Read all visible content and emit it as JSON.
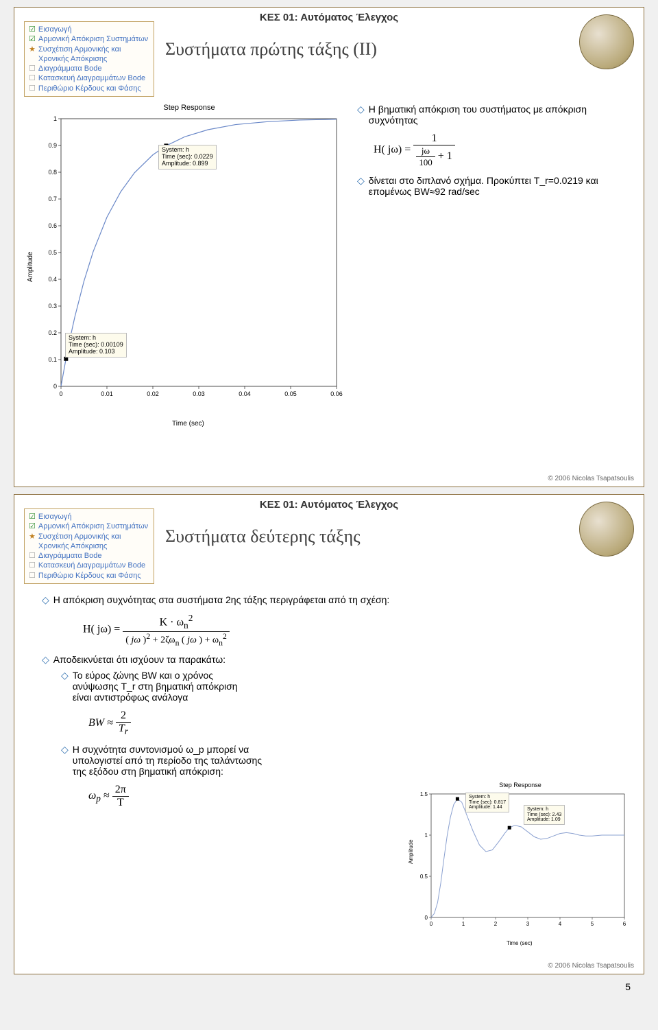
{
  "course_header": "ΚΕΣ 01: Αυτόματος Έλεγχος",
  "nav": {
    "items": [
      {
        "mark": "check",
        "label": "Εισαγωγή"
      },
      {
        "mark": "check",
        "label": "Αρμονική Απόκριση Συστημάτων"
      },
      {
        "mark": "star",
        "label": "Συσχέτιση Αρμονικής και Χρονικής Απόκρισης"
      },
      {
        "mark": "empty",
        "label": "Διαγράμματα Bode"
      },
      {
        "mark": "empty",
        "label": "Κατασκευή Διαγραμμάτων Bode"
      },
      {
        "mark": "empty",
        "label": "Περιθώριο Κέρδους και Φάσης"
      }
    ]
  },
  "slide1": {
    "title": "Συστήματα πρώτης τάξης (ΙΙ)",
    "bullets": [
      "Η βηματική απόκριση του συστήματος με απόκριση συχνότητας",
      "δίνεται στο διπλανό σχήμα. Προκύπτει T_r=0.0219 και επομένως BW≈92 rad/sec"
    ],
    "eq_lhs": "H( jω) =",
    "eq_num": "1",
    "eq_den_a": "jω",
    "eq_den_b": "100",
    "eq_tail": "+ 1",
    "chart": {
      "title": "Step Response",
      "ylabel": "Amplitude",
      "xlabel": "Time (sec)",
      "x_ticks": [
        "0",
        "0.01",
        "0.02",
        "0.03",
        "0.04",
        "0.05",
        "0.06"
      ],
      "y_ticks": [
        "0",
        "0.1",
        "0.2",
        "0.3",
        "0.4",
        "0.5",
        "0.6",
        "0.7",
        "0.8",
        "0.9",
        "1"
      ],
      "curve": [
        [
          0,
          0
        ],
        [
          0.001,
          0.095
        ],
        [
          0.002,
          0.181
        ],
        [
          0.003,
          0.259
        ],
        [
          0.005,
          0.393
        ],
        [
          0.007,
          0.503
        ],
        [
          0.01,
          0.632
        ],
        [
          0.013,
          0.727
        ],
        [
          0.016,
          0.798
        ],
        [
          0.02,
          0.865
        ],
        [
          0.0229,
          0.899
        ],
        [
          0.027,
          0.933
        ],
        [
          0.032,
          0.959
        ],
        [
          0.038,
          0.978
        ],
        [
          0.045,
          0.989
        ],
        [
          0.052,
          0.995
        ],
        [
          0.06,
          0.998
        ]
      ],
      "line_color": "#6a88c8",
      "axis_color": "#000000",
      "bg": "#ffffff",
      "tip1": {
        "line1": "System: h",
        "line2": "Time (sec): 0.0229",
        "line3": "Amplitude: 0.899"
      },
      "tip2": {
        "line1": "System: h",
        "line2": "Time (sec): 0.00109",
        "line3": "Amplitude: 0.103"
      },
      "marker_color": "#000000",
      "tick_fontsize": 9
    }
  },
  "slide2": {
    "title": "Συστήματα δεύτερης τάξης",
    "text1": "Η απόκριση συχνότητας στα συστήματα 2ης τάξης περιγράφεται από τη σχέση:",
    "eq_lhs": "H( jω) =",
    "eq_num": "Κ · ω",
    "eq_num_sub": "n",
    "eq_num_sup": "2",
    "eq_den": "( jω)² + 2ζω_n ( jω) + ω_n²",
    "text2": "Αποδεικνύεται ότι ισχύουν τα παρακάτω:",
    "sub1_a": "Το εύρος ζώνης BW και ο χρόνος",
    "sub1_b": "ανύψωσης T_r στη βηματική απόκριση",
    "sub1_c": "είναι αντιστρόφως ανάλογα",
    "bw_eq_lhs": "BW ≈",
    "bw_num": "2",
    "bw_den": "T_r",
    "sub2_a": "Η συχνότητα συντονισμού ω_p μπορεί να",
    "sub2_b": "υπολογιστεί από τη περίοδο της ταλάντωσης",
    "sub2_c": "της εξόδου στη βηματική απόκριση:",
    "wp_eq_lhs": "ω_p ≈",
    "wp_num": "2π",
    "wp_den": "T",
    "chart": {
      "title": "Step Response",
      "ylabel": "Amplitude",
      "xlabel": "Time (sec)",
      "x_ticks": [
        "0",
        "1",
        "2",
        "3",
        "4",
        "5",
        "6"
      ],
      "y_ticks": [
        "0",
        "0.5",
        "1",
        "1.5"
      ],
      "curve": [
        [
          0,
          0
        ],
        [
          0.1,
          0.05
        ],
        [
          0.2,
          0.18
        ],
        [
          0.3,
          0.42
        ],
        [
          0.4,
          0.72
        ],
        [
          0.5,
          1.0
        ],
        [
          0.6,
          1.22
        ],
        [
          0.7,
          1.37
        ],
        [
          0.817,
          1.44
        ],
        [
          0.95,
          1.4
        ],
        [
          1.1,
          1.25
        ],
        [
          1.3,
          1.05
        ],
        [
          1.5,
          0.88
        ],
        [
          1.7,
          0.8
        ],
        [
          1.9,
          0.82
        ],
        [
          2.1,
          0.92
        ],
        [
          2.3,
          1.03
        ],
        [
          2.43,
          1.09
        ],
        [
          2.6,
          1.12
        ],
        [
          2.8,
          1.1
        ],
        [
          3.0,
          1.04
        ],
        [
          3.2,
          0.98
        ],
        [
          3.4,
          0.95
        ],
        [
          3.6,
          0.96
        ],
        [
          3.8,
          0.99
        ],
        [
          4.0,
          1.02
        ],
        [
          4.2,
          1.03
        ],
        [
          4.4,
          1.02
        ],
        [
          4.6,
          1.0
        ],
        [
          4.8,
          0.99
        ],
        [
          5.0,
          0.99
        ],
        [
          5.3,
          1.0
        ],
        [
          5.6,
          1.0
        ],
        [
          6.0,
          1.0
        ]
      ],
      "line_color": "#8aa0d0",
      "axis_color": "#000000",
      "tip1": {
        "line1": "System: h",
        "line2": "Time (sec): 0.817",
        "line3": "Amplitude: 1.44"
      },
      "tip2": {
        "line1": "System: h",
        "line2": "Time (sec): 2.43",
        "line3": "Amplitude: 1.09"
      },
      "tick_fontsize": 8
    }
  },
  "footer": "© 2006 Nicolas Tsapatsoulis",
  "page_number": "5"
}
